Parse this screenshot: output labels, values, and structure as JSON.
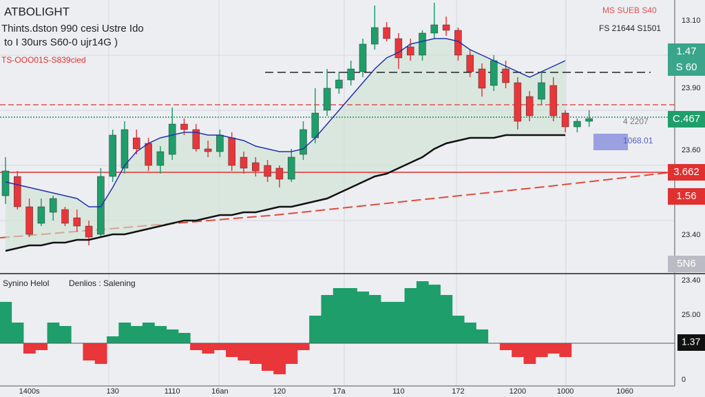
{
  "chart_data": {
    "type": "candlestick",
    "title": "ATBOLIGHT",
    "subtitle": [
      "Thints.dston 990 cesi Ustre Ido",
      "to I 30urs S60-0 ujr14G )"
    ],
    "indicator_label": "TS-OOO01S-S839cied",
    "header_right": [
      "MS SUEB S40",
      "FS 21644 S1501"
    ],
    "categories": [
      null,
      null,
      "1400s",
      null,
      null,
      null,
      null,
      null,
      null,
      "130",
      null,
      null,
      null,
      null,
      "1110",
      null,
      null,
      null,
      "16an",
      null,
      null,
      null,
      null,
      "120",
      null,
      null,
      null,
      null,
      "17a",
      null,
      null,
      null,
      null,
      "110",
      null,
      null,
      null,
      null,
      "172",
      null,
      null,
      null,
      null,
      "1200",
      null,
      null,
      null,
      "1000",
      null,
      null,
      null,
      null,
      "1060"
    ],
    "open": [
      29,
      36,
      25,
      19,
      23,
      24,
      21,
      18,
      15,
      36,
      39,
      50,
      48,
      40,
      44,
      55,
      53,
      46,
      45,
      50,
      43,
      41,
      40,
      39,
      35,
      44,
      50,
      60,
      68,
      71,
      74,
      84,
      90,
      86,
      83,
      80,
      88,
      91,
      89,
      80,
      75,
      69,
      75,
      70,
      65,
      64,
      69,
      59,
      54,
      56,
      null,
      null,
      null
    ],
    "high": [
      43,
      38,
      28,
      28,
      29,
      25,
      24,
      20,
      39,
      53,
      56,
      53,
      50,
      47,
      61,
      57,
      55,
      49,
      53,
      52,
      45,
      43,
      42,
      40,
      46,
      56,
      68,
      75,
      74,
      78,
      86,
      98,
      92,
      88,
      86,
      89,
      99,
      94,
      90,
      82,
      77,
      80,
      78,
      72,
      67,
      74,
      72,
      60,
      57,
      60,
      null,
      null,
      null
    ],
    "low": [
      26,
      24,
      14,
      18,
      20,
      18,
      16,
      11,
      14,
      34,
      37,
      44,
      38,
      37,
      42,
      51,
      45,
      43,
      43,
      38,
      37,
      36,
      34,
      32,
      34,
      42,
      48,
      58,
      66,
      69,
      72,
      82,
      85,
      75,
      78,
      78,
      86,
      87,
      78,
      72,
      65,
      67,
      68,
      53,
      56,
      62,
      56,
      52,
      52,
      54,
      null,
      null,
      null
    ],
    "close": [
      38,
      25,
      15,
      25,
      28,
      19,
      18,
      14,
      36,
      51,
      53,
      46,
      40,
      45,
      55,
      53,
      46,
      45,
      51,
      40,
      39,
      38,
      36,
      35,
      43,
      53,
      59,
      68,
      71,
      75,
      84,
      90,
      86,
      79,
      80,
      88,
      91,
      89,
      80,
      74,
      68,
      78,
      70,
      56,
      58,
      70,
      58,
      54,
      56,
      57,
      null,
      null,
      null
    ],
    "up_color": "#1e9e6a",
    "down_color": "#e8363a",
    "ylim": [
      0,
      100
    ],
    "lines": [
      {
        "color": "#2231a8",
        "values": [
          34,
          33,
          32,
          31,
          30,
          29,
          28,
          25,
          25,
          32,
          40,
          45,
          48,
          50,
          51,
          52,
          52,
          51,
          51,
          50,
          49,
          47,
          46,
          45,
          45,
          46,
          50,
          55,
          60,
          65,
          70,
          75,
          79,
          81,
          84,
          85,
          86,
          86,
          85,
          82,
          80,
          78,
          76,
          74,
          72,
          74,
          76,
          78,
          null,
          null,
          null,
          null,
          null
        ]
      },
      {
        "color": "#111111",
        "values": [
          9,
          10,
          11,
          11,
          12,
          12,
          13,
          13,
          14,
          15,
          15,
          16,
          17,
          18,
          19,
          20,
          20,
          21,
          22,
          22,
          23,
          23,
          24,
          25,
          25,
          26,
          27,
          28,
          30,
          32,
          34,
          36,
          37,
          39,
          41,
          43,
          46,
          48,
          49,
          50,
          50,
          50,
          51,
          51,
          51,
          51,
          51,
          51,
          null,
          null,
          null,
          null,
          null
        ]
      }
    ],
    "levels": [
      {
        "value": 73.75,
        "color": "#222222",
        "dash": "12 6"
      },
      {
        "value": 62,
        "color": "#e05050",
        "dash": "8 4"
      },
      {
        "value": 57.5,
        "color": "#2a8f5a",
        "dash": "2 2"
      },
      {
        "value": 37.5,
        "color": "#e03030",
        "dash": "none"
      }
    ],
    "price_labels": [
      "13.10",
      "23.90",
      "23.60",
      "23.40"
    ],
    "price_tags": [
      {
        "text": "1.47",
        "color": "#3aa58a"
      },
      {
        "text": "S 60",
        "color": "#3aa58a"
      },
      {
        "text": "C.467",
        "color": "#1e9e6a"
      },
      {
        "text": "3.662",
        "color": "#e03030"
      },
      {
        "text": "1.56",
        "color": "#e03030"
      },
      {
        "text": "5N6",
        "color": "#b9bcc4"
      }
    ],
    "annotations": [
      "4 2207",
      "1068.01"
    ],
    "oscillator": {
      "legend": [
        "Synino Helol",
        "Denlios : Salening"
      ],
      "values": [
        60,
        30,
        -15,
        -10,
        30,
        25,
        0,
        -25,
        -30,
        10,
        30,
        25,
        30,
        25,
        20,
        15,
        -10,
        -15,
        -10,
        -20,
        -25,
        -30,
        -40,
        -45,
        -30,
        -10,
        40,
        70,
        80,
        80,
        75,
        70,
        60,
        60,
        80,
        90,
        85,
        70,
        40,
        30,
        20,
        0,
        -10,
        -20,
        -30,
        -20,
        -15,
        -20,
        null,
        null,
        null,
        null,
        null
      ],
      "ylim": [
        -52,
        93
      ],
      "axis_labels": [
        "23.40",
        "25.00",
        "1.37",
        "0"
      ]
    }
  }
}
